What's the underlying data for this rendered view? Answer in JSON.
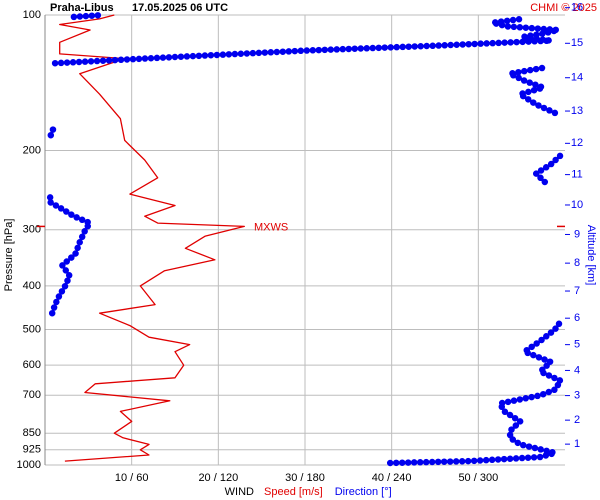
{
  "chart_data": {
    "type": "sounding",
    "title": "Praha-Libus",
    "subtitle": "17.05.2025 06 UTC",
    "credit": "CHMI © 2025",
    "xlabel": "WIND",
    "ylabel": "Pressure [hPa]",
    "y2label": "Altitude [km]",
    "xlim": [
      0,
      60
    ],
    "x2lim": [
      0,
      360
    ],
    "xticks": [
      {
        "value": 10,
        "label": "10 / 60"
      },
      {
        "value": 20,
        "label": "20 / 120"
      },
      {
        "value": 30,
        "label": "30 / 180"
      },
      {
        "value": 40,
        "label": "40 / 240"
      },
      {
        "value": 50,
        "label": "50 / 300"
      }
    ],
    "ylim": [
      1000,
      100
    ],
    "yscale": "log",
    "yticks": [
      100,
      200,
      300,
      400,
      500,
      600,
      700,
      850,
      925,
      1000
    ],
    "y2ticks": [
      1,
      2,
      3,
      4,
      5,
      6,
      7,
      8,
      9,
      10,
      11,
      12,
      13,
      14,
      15,
      16
    ],
    "y2color": "#0000ee",
    "grid": true,
    "max_wind": {
      "text": "MXWS",
      "pressure": 295
    },
    "series": [
      {
        "name": "Speed [m/s]",
        "color": "#e00000",
        "style": "line",
        "pressure": [
          980,
          950,
          925,
          900,
          870,
          850,
          800,
          760,
          720,
          690,
          660,
          640,
          600,
          560,
          540,
          520,
          490,
          460,
          440,
          400,
          370,
          350,
          330,
          310,
          295,
          290,
          280,
          265,
          250,
          230,
          210,
          190,
          170,
          150,
          135,
          125,
          122,
          115,
          108,
          105,
          102,
          100
        ],
        "values": [
          2.3,
          12,
          11,
          12,
          9,
          8,
          10,
          8.7,
          14.4,
          4.6,
          5.8,
          15,
          16,
          15,
          16.7,
          12,
          9.8,
          6.3,
          12.7,
          11,
          13.8,
          19.6,
          16.2,
          18.5,
          23,
          13,
          11.5,
          15,
          9.8,
          13,
          11.5,
          9.2,
          8.7,
          6.3,
          4,
          9.2,
          1.7,
          1.7,
          5.2,
          1.7,
          6.3,
          8
        ]
      },
      {
        "name": "Direction [°]",
        "color": "#0000ee",
        "style": "dots",
        "axis": "x2",
        "pressure": [
          990,
          980,
          960,
          940,
          900,
          870,
          840,
          800,
          760,
          730,
          700,
          680,
          650,
          620,
          590,
          560,
          530,
          500,
          475,
          null,
          460,
          440,
          420,
          400,
          380,
          360,
          340,
          320,
          300,
          290,
          280,
          270,
          260,
          250,
          null,
          235,
          225,
          215,
          205,
          null,
          185,
          178,
          null,
          165,
          158,
          150,
          145,
          140,
          135,
          131,
          null,
          128,
          124,
          120,
          117,
          114,
          112,
          110,
          108,
          106,
          104,
          102,
          null,
          101,
          100
        ],
        "values": [
          239,
          294,
          343,
          353,
          329,
          322,
          322,
          329,
          318,
          315,
          343,
          353,
          357,
          343,
          350,
          332,
          343,
          353,
          358,
          null,
          5,
          7,
          10,
          14,
          17,
          12,
          21,
          24,
          28,
          31,
          20,
          12,
          3,
          4,
          null,
          346,
          340,
          350,
          357,
          null,
          4,
          6,
          null,
          353,
          340,
          329,
          345,
          332,
          322,
          345,
          null,
          7,
          90,
          180,
          270,
          350,
          330,
          345,
          355,
          320,
          310,
          330,
          null,
          20,
          40
        ]
      }
    ]
  }
}
